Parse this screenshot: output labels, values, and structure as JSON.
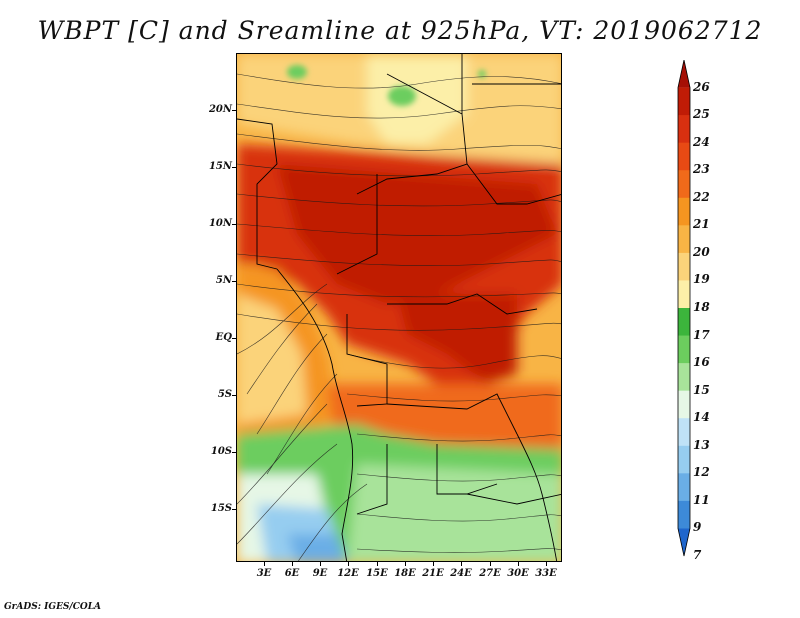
{
  "title": "WBPT [C] and Sreamline at 925hPa, VT: 2019062712",
  "credit": "GrADS: IGES/COLA",
  "lat_labels": [
    "20N",
    "15N",
    "10N",
    "5N",
    "EQ",
    "5S",
    "10S",
    "15S"
  ],
  "lon_labels": [
    "3E",
    "6E",
    "9E",
    "12E",
    "15E",
    "18E",
    "21E",
    "24E",
    "27E",
    "30E",
    "33E"
  ],
  "colorbar": {
    "labels": [
      "26",
      "25",
      "24",
      "23",
      "22",
      "21",
      "20",
      "19",
      "18",
      "17",
      "16",
      "15",
      "14",
      "13",
      "12",
      "11",
      "9",
      "7"
    ],
    "colors": [
      "#a50f05",
      "#c01c06",
      "#d83010",
      "#e84a14",
      "#f06a1a",
      "#f59520",
      "#f8b445",
      "#fbd37a",
      "#fcefa8",
      "#3cb53c",
      "#6ccd5e",
      "#a8e39a",
      "#e6f7e6",
      "#bfe2f7",
      "#96cdf0",
      "#6aaee6",
      "#3d8ad8",
      "#1f66cc"
    ]
  }
}
